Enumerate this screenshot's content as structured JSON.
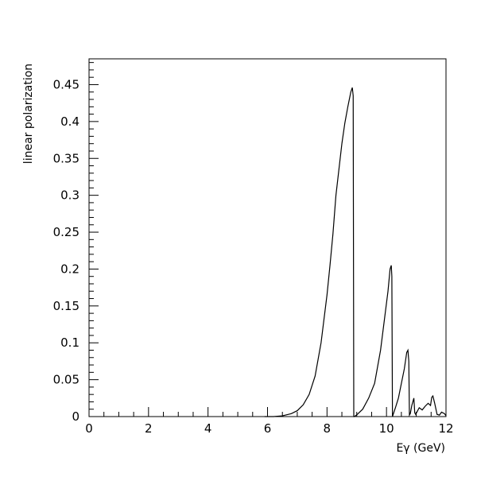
{
  "chart_data": {
    "type": "line",
    "title": "",
    "xlabel": "Eγ (GeV)",
    "ylabel": "linear polarization",
    "xlim": [
      0,
      12
    ],
    "ylim": [
      0,
      0.485
    ],
    "x_ticks": [
      0,
      2,
      4,
      6,
      8,
      10,
      12
    ],
    "x_tick_labels": [
      "0",
      "2",
      "4",
      "6",
      "8",
      "10",
      "12"
    ],
    "y_ticks": [
      0,
      0.05,
      0.1,
      0.15,
      0.2,
      0.25,
      0.3,
      0.35,
      0.4,
      0.45
    ],
    "y_tick_labels": [
      "0",
      "0.05",
      "0.1",
      "0.15",
      "0.2",
      "0.25",
      "0.3",
      "0.35",
      "0.4",
      "0.45"
    ],
    "grid": false,
    "legend": "none",
    "line_color": "#000000",
    "series": [
      {
        "x": [
          5.9,
          6.2,
          6.5,
          6.8,
          7.0,
          7.2,
          7.4,
          7.6,
          7.8,
          8.0,
          8.1,
          8.2,
          8.3,
          8.4,
          8.5,
          8.6,
          8.7,
          8.8,
          8.85,
          8.88,
          8.9,
          8.92,
          9.02,
          9.2,
          9.4,
          9.6,
          9.8,
          9.95,
          10.05,
          10.12,
          10.16,
          10.18,
          10.2,
          10.3,
          10.4,
          10.5,
          10.6,
          10.68,
          10.72,
          10.75,
          10.77,
          10.8,
          10.85,
          10.92,
          10.95,
          10.98,
          11.02,
          11.1,
          11.2,
          11.3,
          11.4,
          11.48,
          11.52,
          11.56,
          11.62,
          11.7,
          11.78,
          11.85,
          11.95,
          12.0
        ],
        "y": [
          0.0,
          0.0,
          0.001,
          0.004,
          0.008,
          0.016,
          0.03,
          0.055,
          0.1,
          0.165,
          0.205,
          0.248,
          0.3,
          0.335,
          0.37,
          0.398,
          0.42,
          0.44,
          0.446,
          0.435,
          0.0,
          0.0,
          0.003,
          0.01,
          0.025,
          0.045,
          0.09,
          0.138,
          0.17,
          0.2,
          0.205,
          0.19,
          0.0,
          0.012,
          0.025,
          0.045,
          0.065,
          0.087,
          0.09,
          0.075,
          0.002,
          0.004,
          0.015,
          0.025,
          0.005,
          0.003,
          0.006,
          0.012,
          0.009,
          0.014,
          0.018,
          0.015,
          0.026,
          0.028,
          0.018,
          0.003,
          0.002,
          0.006,
          0.004,
          0.001
        ]
      }
    ]
  }
}
